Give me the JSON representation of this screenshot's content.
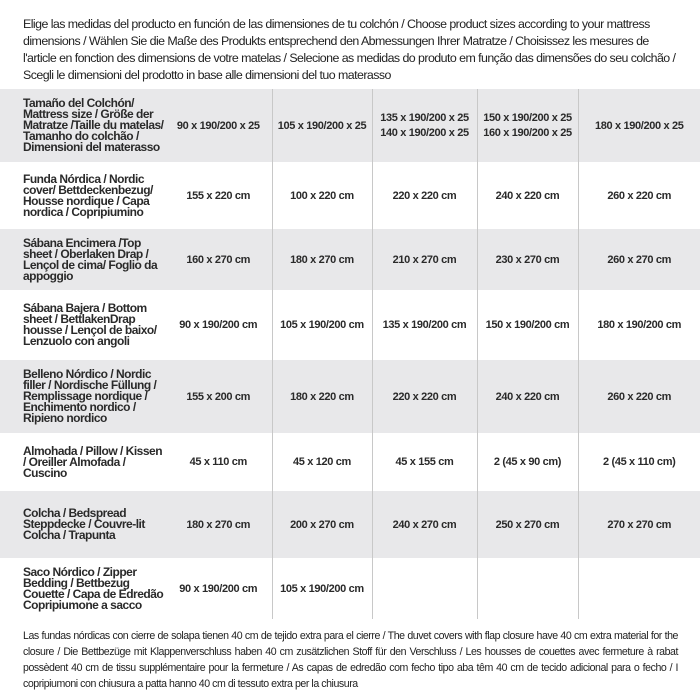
{
  "intro": "Elige las medidas del producto en función de las dimensiones de tu colchón / Choose product sizes according to your mattress dimensions / Wählen Sie die Maße des Produkts entsprechend den Abmessungen Ihrer Matratze / Choisissez les mesures de l'article en fonction des dimensions de votre matelas / Selecione as medidas do produto em função das dimensões do seu colchão / Scegli le dimensioni del prodotto in base alle dimensioni del tuo materasso",
  "table": {
    "header": {
      "label": "Tamaño del Colchón/ Mattress size / Größe der Matratze /Taille du matelas/ Tamanho do colchão / Dimensioni del materasso",
      "sizes": [
        [
          "90 x 190/200 x 25"
        ],
        [
          "105 x 190/200 x 25"
        ],
        [
          "135 x 190/200 x 25",
          "140 x 190/200 x 25"
        ],
        [
          "150 x 190/200 x 25",
          "160 x 190/200 x 25"
        ],
        [
          "180 x 190/200 x 25"
        ]
      ]
    },
    "rows": [
      {
        "label": "Funda Nórdica /  Nordic cover/ Bettdeckenbezug/ Housse nordique  / Capa nordica / Copripiumino",
        "values": [
          "155 x 220 cm",
          "100 x 220 cm",
          "220 x 220 cm",
          "240 x 220 cm",
          "260 x 220 cm"
        ]
      },
      {
        "label": "Sábana Encimera /Top sheet / Oberlaken Drap / Lençol de cima/ Foglio da appoggio",
        "values": [
          "160 x 270 cm",
          "180 x 270 cm",
          "210 x 270 cm",
          "230 x 270 cm",
          "260 x 270 cm"
        ]
      },
      {
        "label": "Sábana Bajera / Bottom sheet / BettlakenDrap housse / Lençol de baixo/ Lenzuolo con angoli",
        "values": [
          "90 x 190/200 cm",
          "105 x 190/200 cm",
          "135 x 190/200 cm",
          "150 x 190/200 cm",
          "180 x 190/200 cm"
        ]
      },
      {
        "label": "Belleno Nórdico / Nordic filler / Nordische Füllung / Remplissage nordique / Enchimento nordico / Ripieno nordico",
        "values": [
          "155 x 200 cm",
          "180 x 220 cm",
          "220 x 220 cm",
          "240 x 220 cm",
          "260 x 220 cm"
        ]
      },
      {
        "label": "Almohada  / Pillow / Kissen / Oreiller Almofada / Cuscino",
        "values": [
          "45 x 110 cm",
          "45 x 120 cm",
          "45 x 155 cm",
          "2 (45 x 90 cm)",
          "2 (45 x 110 cm)"
        ]
      },
      {
        "label": "Colcha / Bedspread Steppdecke / Couvre-lit Colcha / Trapunta",
        "values": [
          "180 x 270 cm",
          "200 x 270 cm",
          "240 x 270 cm",
          "250 x 270 cm",
          "270 x 270 cm"
        ]
      },
      {
        "label": "Saco Nórdico / Zipper Bedding / Bettbezug Couette  / Capa de Edredão Copripiumone a sacco",
        "values": [
          "90 x 190/200 cm",
          "105 x 190/200 cm",
          "",
          "",
          ""
        ]
      }
    ]
  },
  "footer": "Las fundas nórdicas con cierre de solapa tienen 40 cm de tejido extra para el cierre  / The duvet covers with flap closure have 40 cm extra material for the closure / Die Bettbezüge mit Klappenverschluss haben 40 cm zusätzlichen Stoff für den Verschluss / Les housses de couettes avec fermeture à rabat possèdent 40 cm de tissu supplémentaire pour la fermeture / As capas de edredão com fecho tipo aba têm 40 cm de tecido adicional para o fecho / I copripiumoni con chiusura a patta hanno 40 cm di tessuto extra per la chiusura",
  "colors": {
    "row_shade": "#e8e8ea",
    "separator": "#c8c8c8",
    "text": "#2a2a2a"
  }
}
